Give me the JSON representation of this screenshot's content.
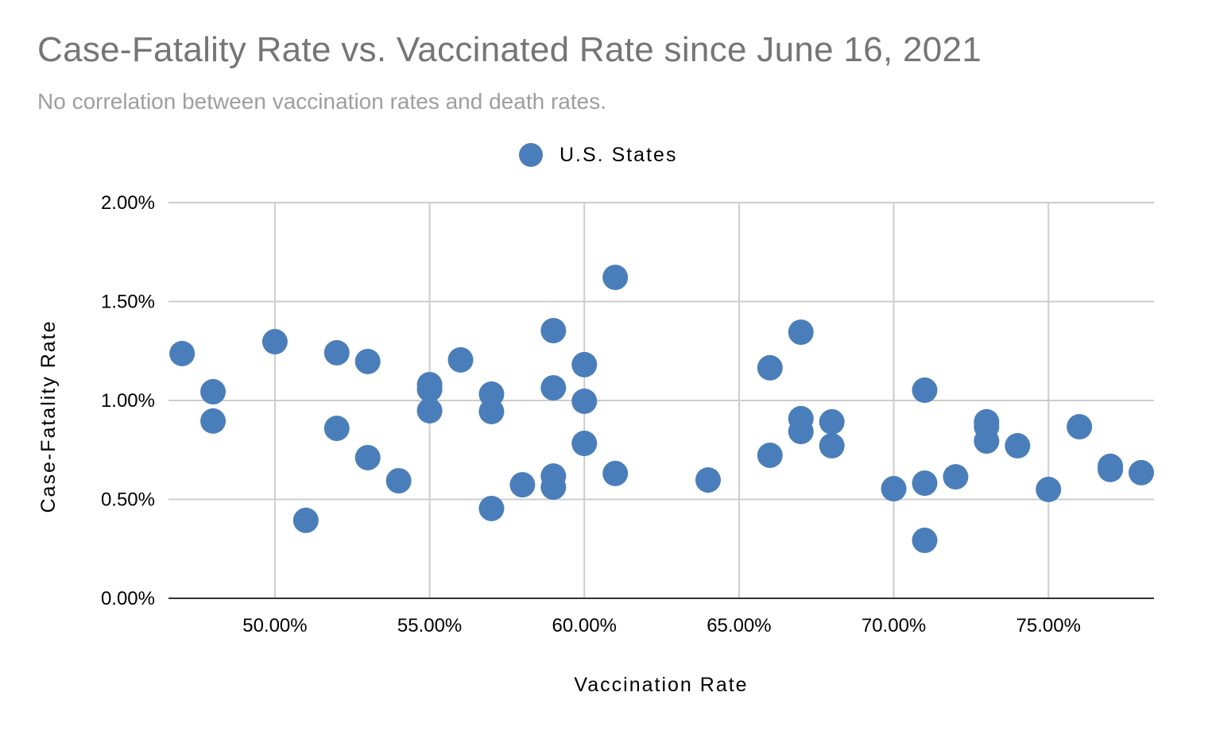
{
  "chart_data": {
    "type": "scatter",
    "title": "Case-Fatality Rate vs. Vaccinated Rate since June 16, 2021",
    "subtitle": "No correlation between vaccination rates and death rates.",
    "xlabel": "Vaccination Rate",
    "ylabel": "Case-Fatality Rate",
    "xlim": [
      46.56,
      78.41
    ],
    "ylim": [
      0,
      2
    ],
    "x_ticks": [
      50,
      55,
      60,
      65,
      70,
      75
    ],
    "x_tick_labels": [
      "50.00%",
      "55.00%",
      "60.00%",
      "65.00%",
      "70.00%",
      "75.00%"
    ],
    "y_ticks": [
      0,
      0.5,
      1,
      1.5,
      2
    ],
    "y_tick_labels": [
      "0.00%",
      "0.50%",
      "1.00%",
      "1.50%",
      "2.00%"
    ],
    "grid": true,
    "legend": {
      "placement": "top-center",
      "entries": [
        "U.S. States"
      ]
    },
    "series": [
      {
        "name": "U.S. States",
        "color": "#4a7ebb",
        "x": [
          47,
          48,
          48,
          50,
          51,
          52,
          52,
          53,
          53,
          54,
          55,
          55,
          55,
          56,
          57,
          57,
          57,
          58,
          59,
          59,
          59,
          59,
          60,
          60,
          60,
          61,
          61,
          64,
          66,
          66,
          67,
          67,
          67,
          68,
          68,
          70,
          71,
          71,
          71,
          72,
          73,
          73,
          73,
          74,
          75,
          76,
          77,
          77,
          78
        ],
        "y": [
          1.237,
          1.044,
          0.896,
          1.297,
          0.394,
          1.241,
          0.859,
          1.197,
          0.711,
          0.594,
          1.08,
          1.056,
          0.948,
          1.205,
          1.032,
          0.944,
          0.454,
          0.574,
          1.353,
          1.064,
          0.618,
          0.562,
          1.181,
          0.996,
          0.783,
          1.622,
          0.631,
          0.598,
          1.165,
          0.723,
          1.345,
          0.908,
          0.843,
          0.892,
          0.771,
          0.554,
          1.052,
          0.582,
          0.293,
          0.614,
          0.892,
          0.867,
          0.795,
          0.771,
          0.55,
          0.867,
          0.667,
          0.651,
          0.635
        ]
      }
    ]
  }
}
